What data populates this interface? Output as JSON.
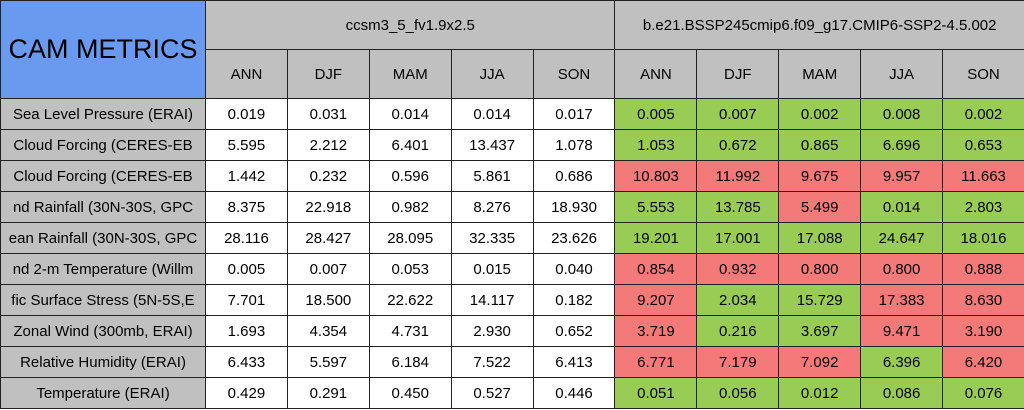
{
  "header": {
    "title": "CAM METRICS",
    "groups": [
      "ccsm3_5_fv1.9x2.5",
      "b.e21.BSSP245cmip6.f09_g17.CMIP6-SSP2-4.5.002"
    ],
    "seasons": [
      "ANN",
      "DJF",
      "MAM",
      "JJA",
      "SON"
    ]
  },
  "colors": {
    "good": "#99cc55",
    "bad": "#f47a7a"
  },
  "table": {
    "rows": [
      {
        "label": "Sea Level Pressure (ERAI)",
        "a": [
          "0.019",
          "0.031",
          "0.014",
          "0.014",
          "0.017"
        ],
        "b": [
          "0.005",
          "0.007",
          "0.002",
          "0.008",
          "0.002"
        ],
        "status": [
          "good",
          "good",
          "good",
          "good",
          "good"
        ]
      },
      {
        "label": "Cloud Forcing (CERES-EB",
        "a": [
          "5.595",
          "2.212",
          "6.401",
          "13.437",
          "1.078"
        ],
        "b": [
          "1.053",
          "0.672",
          "0.865",
          "6.696",
          "0.653"
        ],
        "status": [
          "good",
          "good",
          "good",
          "good",
          "good"
        ]
      },
      {
        "label": "Cloud Forcing (CERES-EB",
        "a": [
          "1.442",
          "0.232",
          "0.596",
          "5.861",
          "0.686"
        ],
        "b": [
          "10.803",
          "11.992",
          "9.675",
          "9.957",
          "11.663"
        ],
        "status": [
          "bad",
          "bad",
          "bad",
          "bad",
          "bad"
        ]
      },
      {
        "label": "nd Rainfall (30N-30S, GPC",
        "a": [
          "8.375",
          "22.918",
          "0.982",
          "8.276",
          "18.930"
        ],
        "b": [
          "5.553",
          "13.785",
          "5.499",
          "0.014",
          "2.803"
        ],
        "status": [
          "good",
          "good",
          "bad",
          "good",
          "good"
        ]
      },
      {
        "label": "ean Rainfall (30N-30S, GPC",
        "a": [
          "28.116",
          "28.427",
          "28.095",
          "32.335",
          "23.626"
        ],
        "b": [
          "19.201",
          "17.001",
          "17.088",
          "24.647",
          "18.016"
        ],
        "status": [
          "good",
          "good",
          "good",
          "good",
          "good"
        ]
      },
      {
        "label": "nd 2-m Temperature (Willm",
        "a": [
          "0.005",
          "0.007",
          "0.053",
          "0.015",
          "0.040"
        ],
        "b": [
          "0.854",
          "0.932",
          "0.800",
          "0.800",
          "0.888"
        ],
        "status": [
          "bad",
          "bad",
          "bad",
          "bad",
          "bad"
        ]
      },
      {
        "label": "fic Surface Stress (5N-5S,E",
        "a": [
          "7.701",
          "18.500",
          "22.622",
          "14.117",
          "0.182"
        ],
        "b": [
          "9.207",
          "2.034",
          "15.729",
          "17.383",
          "8.630"
        ],
        "status": [
          "bad",
          "good",
          "good",
          "bad",
          "bad"
        ]
      },
      {
        "label": "Zonal Wind (300mb, ERAI)",
        "a": [
          "1.693",
          "4.354",
          "4.731",
          "2.930",
          "0.652"
        ],
        "b": [
          "3.719",
          "0.216",
          "3.697",
          "9.471",
          "3.190"
        ],
        "status": [
          "bad",
          "good",
          "good",
          "bad",
          "bad"
        ]
      },
      {
        "label": "Relative Humidity (ERAI)",
        "a": [
          "6.433",
          "5.597",
          "6.184",
          "7.522",
          "6.413"
        ],
        "b": [
          "6.771",
          "7.179",
          "7.092",
          "6.396",
          "6.420"
        ],
        "status": [
          "bad",
          "bad",
          "bad",
          "good",
          "bad"
        ]
      },
      {
        "label": "Temperature (ERAI)",
        "a": [
          "0.429",
          "0.291",
          "0.450",
          "0.527",
          "0.446"
        ],
        "b": [
          "0.051",
          "0.056",
          "0.012",
          "0.086",
          "0.076"
        ],
        "status": [
          "good",
          "good",
          "good",
          "good",
          "good"
        ]
      }
    ]
  }
}
